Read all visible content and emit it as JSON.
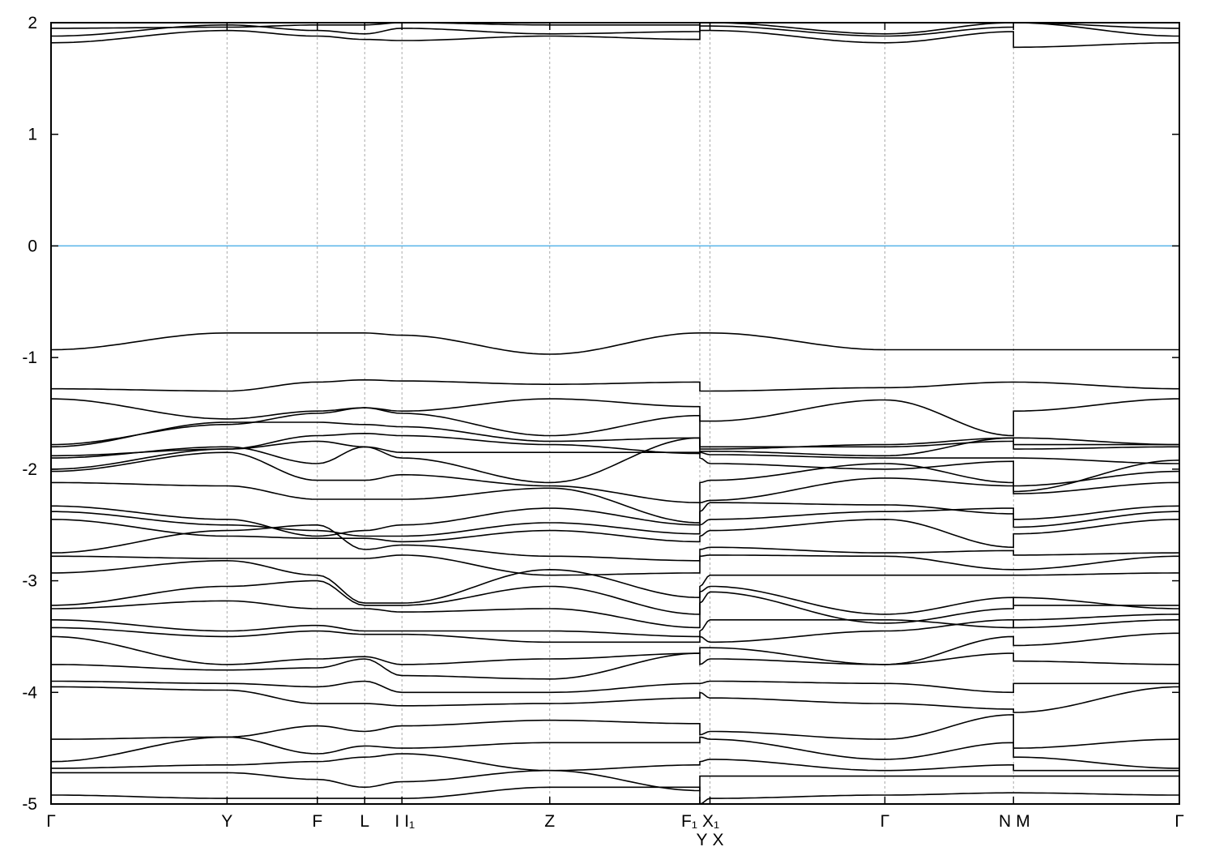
{
  "chart_data": {
    "type": "line",
    "title": "",
    "xlabel": "",
    "ylabel": "",
    "ylim": [
      -5,
      2
    ],
    "yticks": [
      2,
      1,
      0,
      -1,
      -2,
      -3,
      -4,
      -5
    ],
    "grid": "vertical dashed lines at high-symmetry points",
    "fermi_level": {
      "value": 0,
      "color": "#56b4e9"
    },
    "band_color": "#000000",
    "xticks": [
      {
        "k": 0.0,
        "labels": [
          "Γ"
        ]
      },
      {
        "k": 0.156,
        "labels": [
          "Y"
        ]
      },
      {
        "k": 0.236,
        "labels": [
          "F"
        ]
      },
      {
        "k": 0.278,
        "labels": [
          "L"
        ]
      },
      {
        "k": 0.311,
        "labels": [
          "I",
          "I₁"
        ]
      },
      {
        "k": 0.442,
        "labels": [
          "Z"
        ]
      },
      {
        "k": 0.575,
        "labels": [
          "F₁",
          "X₁"
        ]
      },
      {
        "k": 0.584,
        "labels": [
          "Y",
          "X"
        ]
      },
      {
        "k": 0.739,
        "labels": [
          "Γ"
        ]
      },
      {
        "k": 0.853,
        "labels": [
          "N",
          "M"
        ]
      },
      {
        "k": 1.0,
        "labels": [
          "Γ"
        ]
      }
    ],
    "band_nodes_k": [
      0,
      0.156,
      0.236,
      0.278,
      0.311,
      0.442,
      0.575,
      0.575,
      0.584,
      0.739,
      0.853,
      0.853,
      1.0
    ],
    "bands": [
      [
        1.82,
        1.93,
        1.88,
        1.85,
        1.84,
        1.88,
        1.85,
        1.93,
        1.93,
        1.82,
        1.92,
        1.78,
        1.82
      ],
      [
        1.88,
        1.98,
        1.93,
        1.9,
        1.95,
        1.9,
        1.92,
        1.97,
        1.97,
        1.88,
        1.96,
        2.0,
        1.88
      ],
      [
        1.95,
        1.96,
        1.98,
        1.98,
        2.0,
        1.98,
        1.98,
        2.0,
        2.0,
        1.9,
        2.0,
        2.0,
        1.95
      ],
      [
        -0.93,
        -0.78,
        -0.78,
        -0.78,
        -0.8,
        -0.97,
        -0.78,
        -0.78,
        -0.78,
        -0.93,
        -0.93,
        -0.93,
        -0.93
      ],
      [
        -1.28,
        -1.3,
        -1.22,
        -1.2,
        -1.21,
        -1.24,
        -1.22,
        -1.3,
        -1.3,
        -1.27,
        -1.22,
        -1.22,
        -1.28
      ],
      [
        -1.37,
        -1.55,
        -1.48,
        -1.45,
        -1.48,
        -1.37,
        -1.44,
        -1.57,
        -1.57,
        -1.38,
        -1.7,
        -1.48,
        -1.37
      ],
      [
        -1.78,
        -1.6,
        -1.5,
        -1.45,
        -1.5,
        -1.7,
        -1.52,
        -1.82,
        -1.82,
        -1.78,
        -1.72,
        -1.72,
        -1.78
      ],
      [
        -1.8,
        -1.58,
        -1.58,
        -1.6,
        -1.62,
        -1.75,
        -1.72,
        -1.8,
        -1.8,
        -1.8,
        -1.75,
        -1.82,
        -1.8
      ],
      [
        -1.88,
        -1.82,
        -1.7,
        -1.68,
        -1.7,
        -1.78,
        -1.86,
        -1.84,
        -1.84,
        -1.88,
        -1.72,
        -1.78,
        -1.78
      ],
      [
        -1.9,
        -1.8,
        -1.95,
        -1.8,
        -1.85,
        -1.85,
        -1.85,
        -1.85,
        -1.87,
        -1.9,
        -1.9,
        -1.9,
        -1.95
      ],
      [
        -2.0,
        -1.82,
        -1.75,
        -1.8,
        -1.9,
        -2.12,
        -1.72,
        -1.9,
        -1.95,
        -2.0,
        -1.93,
        -2.2,
        -1.92
      ],
      [
        -2.02,
        -1.85,
        -2.1,
        -2.1,
        -2.05,
        -2.15,
        -2.3,
        -2.12,
        -2.1,
        -1.95,
        -2.12,
        -2.15,
        -2.02
      ],
      [
        -2.12,
        -2.15,
        -2.27,
        -2.27,
        -2.27,
        -2.17,
        -2.48,
        -2.3,
        -2.28,
        -2.08,
        -2.15,
        -2.22,
        -2.12
      ],
      [
        -2.33,
        -2.45,
        -2.6,
        -2.55,
        -2.5,
        -2.35,
        -2.5,
        -2.5,
        -2.45,
        -2.38,
        -2.35,
        -2.45,
        -2.33
      ],
      [
        -2.38,
        -2.5,
        -2.55,
        -2.6,
        -2.6,
        -2.48,
        -2.58,
        -2.38,
        -2.3,
        -2.32,
        -2.4,
        -2.52,
        -2.38
      ],
      [
        -2.45,
        -2.6,
        -2.62,
        -2.62,
        -2.65,
        -2.55,
        -2.65,
        -2.6,
        -2.55,
        -2.45,
        -2.7,
        -2.58,
        -2.45
      ],
      [
        -2.75,
        -2.55,
        -2.5,
        -2.72,
        -2.68,
        -2.78,
        -2.82,
        -2.72,
        -2.7,
        -2.75,
        -2.73,
        -2.77,
        -2.75
      ],
      [
        -2.78,
        -2.8,
        -2.8,
        -2.8,
        -2.77,
        -2.95,
        -2.93,
        -2.78,
        -2.77,
        -2.78,
        -2.9,
        -2.9,
        -2.78
      ],
      [
        -2.93,
        -2.82,
        -2.95,
        -3.2,
        -3.2,
        -2.9,
        -3.15,
        -3.05,
        -2.95,
        -2.95,
        -2.95,
        -2.95,
        -2.93
      ],
      [
        -3.22,
        -3.05,
        -3.0,
        -3.22,
        -3.22,
        -3.05,
        -3.3,
        -3.1,
        -3.05,
        -3.3,
        -3.15,
        -3.22,
        -3.22
      ],
      [
        -3.25,
        -3.18,
        -3.25,
        -3.25,
        -3.28,
        -3.25,
        -3.42,
        -3.2,
        -3.1,
        -3.38,
        -3.25,
        -3.15,
        -3.25
      ],
      [
        -3.35,
        -3.45,
        -3.4,
        -3.45,
        -3.45,
        -3.45,
        -3.5,
        -3.45,
        -3.35,
        -3.35,
        -3.42,
        -3.35,
        -3.3
      ],
      [
        -3.42,
        -3.5,
        -3.45,
        -3.48,
        -3.48,
        -3.55,
        -3.55,
        -3.5,
        -3.55,
        -3.45,
        -3.35,
        -3.42,
        -3.35
      ],
      [
        -3.5,
        -3.75,
        -3.7,
        -3.68,
        -3.75,
        -3.7,
        -3.65,
        -3.6,
        -3.6,
        -3.75,
        -3.5,
        -3.58,
        -3.47
      ],
      [
        -3.75,
        -3.8,
        -3.78,
        -3.7,
        -3.85,
        -3.88,
        -3.65,
        -3.75,
        -3.7,
        -3.75,
        -3.65,
        -3.72,
        -3.75
      ],
      [
        -3.9,
        -3.92,
        -3.95,
        -3.9,
        -4.0,
        -4.0,
        -3.92,
        -3.92,
        -3.9,
        -3.92,
        -4.0,
        -3.92,
        -3.92
      ],
      [
        -3.95,
        -3.98,
        -4.1,
        -4.1,
        -4.12,
        -4.1,
        -4.05,
        -4.0,
        -4.05,
        -4.1,
        -4.15,
        -4.18,
        -3.95
      ],
      [
        -4.42,
        -4.4,
        -4.3,
        -4.35,
        -4.3,
        -4.25,
        -4.28,
        -4.38,
        -4.35,
        -4.42,
        -4.2,
        -4.5,
        -4.42
      ],
      [
        -4.62,
        -4.4,
        -4.55,
        -4.48,
        -4.5,
        -4.45,
        -4.45,
        -4.4,
        -4.42,
        -4.6,
        -4.45,
        -4.58,
        -4.68
      ],
      [
        -4.68,
        -4.65,
        -4.62,
        -4.58,
        -4.55,
        -4.7,
        -4.65,
        -4.62,
        -4.6,
        -4.7,
        -4.65,
        -4.7,
        -4.7
      ],
      [
        -4.72,
        -4.72,
        -4.78,
        -4.85,
        -4.8,
        -4.7,
        -4.88,
        -4.75,
        -4.75,
        -4.75,
        -4.75,
        -4.75,
        -4.75
      ],
      [
        -4.92,
        -4.95,
        -4.95,
        -4.95,
        -4.95,
        -4.85,
        -4.85,
        -5.0,
        -4.95,
        -4.92,
        -4.9,
        -4.9,
        -4.92
      ]
    ]
  }
}
